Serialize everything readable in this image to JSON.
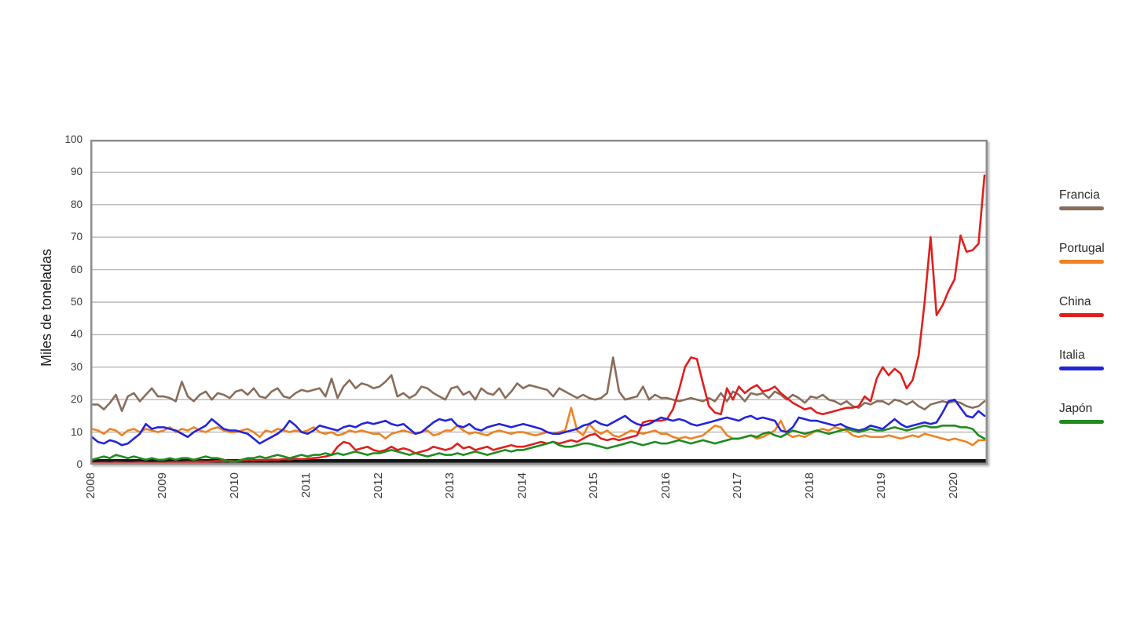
{
  "chart_data": {
    "type": "line",
    "title": "",
    "xlabel": "",
    "ylabel": "Miles de toneladas",
    "ylim": [
      0,
      100
    ],
    "ytick_step": 10,
    "grid": true,
    "legend_position": "right",
    "frequency": "monthly",
    "x_start": "2008-01",
    "x_end": "2020-06",
    "xticks": [
      "2008",
      "2009",
      "2010",
      "2011",
      "2012",
      "2013",
      "2014",
      "2015",
      "2016",
      "2017",
      "2018",
      "2019",
      "2020"
    ],
    "axis_colors": {
      "frame": "#8d8d8d",
      "gridline": "#b8b8b8",
      "zero_bar": "#161616",
      "tick_text": "#3a3a3a"
    },
    "series": [
      {
        "name": "Francia",
        "color": "#8a6d5b",
        "values": [
          18.5,
          18.5,
          17,
          19,
          21.5,
          16.5,
          21,
          22,
          19.5,
          21.5,
          23.5,
          21,
          21,
          20.5,
          19.5,
          25.5,
          21,
          19.5,
          21.5,
          22.5,
          20,
          22,
          21.5,
          20.5,
          22.5,
          23,
          21.5,
          23.5,
          21,
          20.5,
          22.5,
          23.5,
          21,
          20.5,
          22,
          23,
          22.5,
          23,
          23.5,
          21,
          26.5,
          20.5,
          24,
          26,
          23.5,
          25,
          24.5,
          23.5,
          24,
          25.5,
          27.5,
          21,
          22,
          20.5,
          21.5,
          24,
          23.5,
          22,
          21,
          20,
          23.5,
          24,
          21.5,
          22.5,
          20,
          23.5,
          22,
          21.5,
          23.5,
          20.5,
          22.5,
          25,
          23.5,
          24.5,
          24,
          23.5,
          23,
          21,
          23.5,
          22.5,
          21.5,
          20.5,
          21.5,
          20.5,
          20,
          20.5,
          22,
          33,
          22.5,
          20,
          20.5,
          21,
          24,
          20,
          21.5,
          20.5,
          20.5,
          20,
          19.5,
          20,
          20.5,
          20,
          19.5,
          20.5,
          19.5,
          22,
          19.5,
          22.5,
          21.5,
          19.5,
          22,
          21.5,
          22,
          20.5,
          22.5,
          21.5,
          20,
          21.5,
          20.5,
          19,
          21,
          20.5,
          21.5,
          20,
          19.5,
          18.5,
          19.5,
          18,
          17.5,
          19,
          18.5,
          19.5,
          19.5,
          18.5,
          20,
          19.5,
          18.5,
          19.5,
          18,
          17,
          18.5,
          19,
          19.5,
          19,
          19.5,
          19,
          18,
          17.5,
          18,
          19.5
        ]
      },
      {
        "name": "Portugal",
        "color": "#f08223",
        "values": [
          11,
          10.5,
          9.5,
          11,
          10.5,
          9,
          10.5,
          11,
          10,
          11,
          10.5,
          10,
          10.5,
          11.5,
          10,
          11,
          10.5,
          11.5,
          10.5,
          10,
          11,
          11.5,
          10.5,
          10,
          10,
          10.5,
          11,
          10,
          8.5,
          10.5,
          10,
          11,
          10.5,
          10,
          10.5,
          10,
          10.5,
          11.5,
          10,
          9.5,
          10,
          9,
          9.5,
          10.5,
          10,
          10.5,
          10,
          9.5,
          9.5,
          8,
          9.5,
          10,
          10.5,
          10,
          9.5,
          10,
          10.5,
          9,
          9.5,
          10.5,
          10.5,
          12,
          10.5,
          9.5,
          10,
          9.5,
          9,
          10,
          10.5,
          10,
          9.5,
          10,
          10,
          9.5,
          9,
          9.5,
          10,
          9.5,
          10,
          10.5,
          17.5,
          10.5,
          9,
          12.5,
          10.5,
          9.5,
          10.5,
          9,
          8.5,
          9.5,
          10.5,
          10,
          9.5,
          10,
          10.5,
          9.5,
          9.5,
          8.5,
          8,
          8.5,
          8,
          8.5,
          9,
          10.5,
          12,
          11.5,
          9,
          8,
          8,
          8.5,
          9,
          8,
          8.5,
          9.5,
          10.5,
          13.5,
          9.5,
          8.5,
          9,
          8.5,
          9.5,
          10.5,
          11,
          10.5,
          11.5,
          11,
          10.5,
          9,
          8.5,
          9,
          8.5,
          8.5,
          8.5,
          9,
          8.5,
          8,
          8.5,
          9,
          8.5,
          9.5,
          9,
          8.5,
          8,
          7.5,
          8,
          7.5,
          7,
          6,
          7.5,
          7.5
        ]
      },
      {
        "name": "China",
        "color": "#e01f1d",
        "values": [
          0.5,
          0.5,
          0.6,
          0.5,
          0.7,
          0.6,
          0.5,
          0.6,
          0.7,
          0.6,
          0.5,
          0.6,
          0.6,
          0.7,
          0.8,
          0.7,
          0.9,
          0.8,
          1,
          0.9,
          1,
          1.1,
          1,
          1.2,
          1,
          1.2,
          1.5,
          1.3,
          1.5,
          1.4,
          1.6,
          1.5,
          1.7,
          1.6,
          1.8,
          1.7,
          1.8,
          2,
          2.2,
          2.5,
          3,
          5.5,
          7,
          6.5,
          4.5,
          5,
          5.5,
          4.5,
          4,
          4.5,
          5.5,
          4.5,
          5,
          4.5,
          3.5,
          4,
          4.5,
          5.5,
          5,
          4.5,
          5,
          6.5,
          5,
          5.5,
          4.5,
          5,
          5.5,
          4.5,
          5,
          5.5,
          6,
          5.5,
          5.5,
          6,
          6.5,
          7,
          6.5,
          7,
          6.5,
          7,
          7.5,
          7,
          8,
          9,
          9.5,
          8,
          7.5,
          8,
          7.5,
          8,
          8.5,
          9,
          13,
          13.5,
          13.5,
          13.5,
          14,
          17,
          23,
          30,
          33,
          32.5,
          25,
          18,
          16,
          15.5,
          23.5,
          20,
          24,
          22,
          23.5,
          24.5,
          22.5,
          23,
          24,
          22,
          20.5,
          19,
          18,
          17,
          17.5,
          16,
          15.5,
          16,
          16.5,
          17,
          17.5,
          17.5,
          18,
          21,
          19.5,
          26.5,
          30,
          27.5,
          29.5,
          28,
          23.5,
          26,
          33.5,
          50,
          70,
          46,
          49,
          53.5,
          57,
          70.5,
          65.5,
          66,
          68,
          89
        ]
      },
      {
        "name": "Italia",
        "color": "#2424d8",
        "values": [
          8.5,
          7,
          6.5,
          7.5,
          7,
          6,
          6.5,
          8,
          9.5,
          12.5,
          11,
          11.5,
          11.5,
          11,
          10.5,
          9.5,
          8.5,
          10,
          11,
          12,
          14,
          12.5,
          11,
          10.5,
          10.5,
          10,
          9.5,
          8,
          6.5,
          7.5,
          8.5,
          9.5,
          11,
          13.5,
          12,
          10,
          9.5,
          10.5,
          12,
          11.5,
          11,
          10.5,
          11.5,
          12,
          11.5,
          12.5,
          13,
          12.5,
          13,
          13.5,
          12.5,
          12,
          12.5,
          11,
          9.5,
          10,
          11.5,
          13,
          14,
          13.5,
          14,
          12,
          11.5,
          12.5,
          11,
          10.5,
          11.5,
          12,
          12.5,
          12,
          11.5,
          12,
          12.5,
          12,
          11.5,
          11,
          10,
          9.5,
          9.5,
          10,
          10.5,
          11,
          12,
          12.5,
          13.5,
          12.5,
          12,
          13,
          14,
          15,
          13.5,
          12.5,
          12,
          12.5,
          13.5,
          14.5,
          14,
          13.5,
          14,
          13.5,
          12.5,
          12,
          12.5,
          13,
          13.5,
          14,
          14.5,
          14,
          13.5,
          14.5,
          15,
          14,
          14.5,
          14,
          13.5,
          10.5,
          10,
          11.5,
          14.5,
          14,
          13.5,
          13.5,
          13,
          12.5,
          12,
          12.5,
          11.5,
          11,
          10.5,
          11,
          12,
          11.5,
          11,
          12.5,
          14,
          12.5,
          11.5,
          12,
          12.5,
          13,
          12.5,
          13,
          16,
          19.5,
          20,
          17.5,
          15,
          14.5,
          16.5,
          15
        ]
      },
      {
        "name": "Japón",
        "color": "#1f8b1f",
        "values": [
          1.5,
          2,
          2.5,
          2,
          3,
          2.5,
          2,
          2.5,
          2,
          1.5,
          2,
          1.5,
          1.5,
          2,
          1.5,
          2,
          2,
          1.5,
          2,
          2.5,
          2,
          2,
          1.5,
          1,
          1,
          1.5,
          2,
          2,
          2.5,
          2,
          2.5,
          3,
          2.5,
          2,
          2.5,
          3,
          2.5,
          3,
          3,
          3.5,
          3,
          3.5,
          3,
          3.5,
          4,
          3.5,
          3,
          3.5,
          3.5,
          4,
          4.5,
          4,
          3.5,
          3,
          3.5,
          3,
          2.5,
          3,
          3.5,
          3,
          3,
          3.5,
          3,
          3.5,
          4,
          3.5,
          3,
          3.5,
          4,
          4.5,
          4,
          4.5,
          4.5,
          5,
          5.5,
          6,
          6.5,
          7,
          6,
          5.5,
          5.5,
          6,
          6.5,
          6.5,
          6,
          5.5,
          5,
          5.5,
          6,
          6.5,
          7,
          6.5,
          6,
          6.5,
          7,
          6.5,
          6.5,
          7,
          7.5,
          7,
          6.5,
          7,
          7.5,
          7,
          6.5,
          7,
          7.5,
          8,
          8,
          8.5,
          9,
          8.5,
          9.5,
          10,
          9,
          8.5,
          9.5,
          10.5,
          10,
          9.5,
          10,
          10.5,
          10,
          9.5,
          10,
          10.5,
          11,
          10.5,
          10,
          10.5,
          11,
          10.5,
          10.5,
          11,
          11.5,
          11,
          10.5,
          11,
          11.5,
          12,
          11.5,
          11.5,
          12,
          12,
          12,
          11.5,
          11.5,
          11,
          9,
          8
        ]
      }
    ]
  }
}
